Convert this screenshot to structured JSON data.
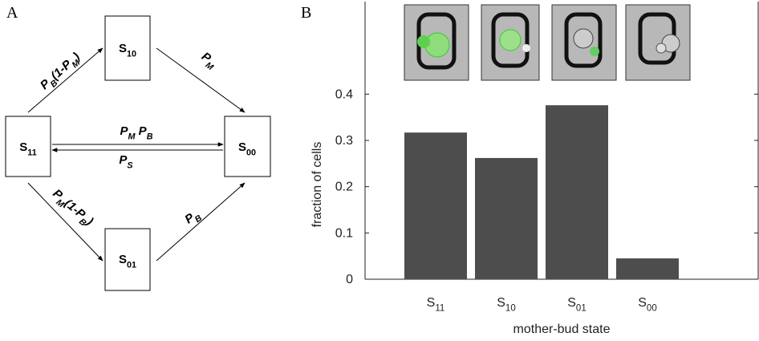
{
  "panel_a": {
    "label": "A",
    "nodes": [
      [
        {
          "text": "S"
        },
        {
          "sub": "11"
        }
      ],
      [
        {
          "text": "S"
        },
        {
          "sub": "10"
        }
      ],
      [
        {
          "text": "S"
        },
        {
          "sub": "00"
        }
      ],
      [
        {
          "text": "S"
        },
        {
          "sub": "01"
        }
      ]
    ],
    "edges": [
      [
        {
          "text": "P"
        },
        {
          "sub": "B"
        },
        {
          "text": "(1-P"
        },
        {
          "sub": "M"
        },
        {
          "text": ")"
        }
      ],
      [
        {
          "text": "P"
        },
        {
          "sub": "M"
        }
      ],
      [
        {
          "text": "P"
        },
        {
          "sub": "M"
        },
        {
          "text": " P"
        },
        {
          "sub": "B"
        }
      ],
      [
        {
          "text": "P"
        },
        {
          "sub": "S"
        }
      ],
      [
        {
          "text": "P"
        },
        {
          "sub": "M"
        },
        {
          "text": "(1-P"
        },
        {
          "sub": "B"
        },
        {
          "text": ")"
        }
      ],
      [
        {
          "text": "P"
        },
        {
          "sub": "B"
        }
      ]
    ]
  },
  "chart_data": {
    "type": "bar",
    "panel_label": "B",
    "x_label": "mother-bud state",
    "y_label": "fraction of cells",
    "categories": [
      [
        {
          "text": "S"
        },
        {
          "sub": "11"
        }
      ],
      [
        {
          "text": "S"
        },
        {
          "sub": "10"
        }
      ],
      [
        {
          "text": "S"
        },
        {
          "sub": "01"
        }
      ],
      [
        {
          "text": "S"
        },
        {
          "sub": "00"
        }
      ]
    ],
    "values": [
      0.317,
      0.262,
      0.376,
      0.045
    ],
    "color": "#4d4d4d",
    "ylim": [
      0,
      0.6
    ],
    "yticks": [
      0,
      0.1,
      0.2,
      0.3,
      0.4
    ]
  }
}
